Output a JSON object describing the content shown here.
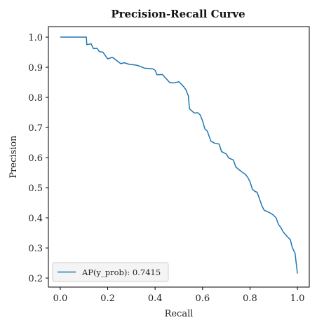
{
  "chart_data": {
    "type": "line",
    "title": "Precision-Recall Curve",
    "xlabel": "Recall",
    "ylabel": "Precision",
    "xlim": [
      -0.05,
      1.05
    ],
    "ylim": [
      0.17,
      1.035
    ],
    "xticks": [
      0.0,
      0.2,
      0.4,
      0.6,
      0.8,
      1.0
    ],
    "xtick_labels": [
      "0.0",
      "0.2",
      "0.4",
      "0.6",
      "0.8",
      "1.0"
    ],
    "yticks": [
      0.2,
      0.3,
      0.4,
      0.5,
      0.6,
      0.7,
      0.8,
      0.9,
      1.0
    ],
    "ytick_labels": [
      "0.2",
      "0.3",
      "0.4",
      "0.5",
      "0.6",
      "0.7",
      "0.8",
      "0.9",
      "1.0"
    ],
    "grid": false,
    "legend_position": "lower-left",
    "series": [
      {
        "name": "AP(y_prob): 0.7415",
        "color": "#1f77b4",
        "x": [
          0.0,
          0.11,
          0.112,
          0.13,
          0.14,
          0.155,
          0.165,
          0.18,
          0.2,
          0.22,
          0.255,
          0.27,
          0.29,
          0.32,
          0.33,
          0.355,
          0.39,
          0.4,
          0.408,
          0.43,
          0.44,
          0.462,
          0.48,
          0.5,
          0.52,
          0.53,
          0.54,
          0.545,
          0.555,
          0.565,
          0.58,
          0.59,
          0.6,
          0.61,
          0.62,
          0.635,
          0.65,
          0.67,
          0.68,
          0.7,
          0.71,
          0.73,
          0.74,
          0.76,
          0.77,
          0.78,
          0.79,
          0.8,
          0.81,
          0.82,
          0.83,
          0.845,
          0.85,
          0.86,
          0.87,
          0.89,
          0.9,
          0.91,
          0.92,
          0.93,
          0.94,
          0.96,
          0.97,
          0.978,
          0.99,
          1.0
        ],
        "y": [
          1.0,
          1.0,
          0.975,
          0.978,
          0.962,
          0.963,
          0.952,
          0.95,
          0.928,
          0.933,
          0.912,
          0.915,
          0.91,
          0.907,
          0.905,
          0.897,
          0.895,
          0.89,
          0.875,
          0.876,
          0.868,
          0.849,
          0.848,
          0.852,
          0.836,
          0.825,
          0.805,
          0.762,
          0.755,
          0.748,
          0.749,
          0.742,
          0.722,
          0.695,
          0.688,
          0.655,
          0.648,
          0.645,
          0.62,
          0.612,
          0.599,
          0.592,
          0.569,
          0.556,
          0.55,
          0.545,
          0.535,
          0.52,
          0.495,
          0.488,
          0.485,
          0.452,
          0.44,
          0.425,
          0.422,
          0.414,
          0.408,
          0.4,
          0.378,
          0.368,
          0.353,
          0.335,
          0.328,
          0.302,
          0.282,
          0.215
        ]
      }
    ]
  }
}
